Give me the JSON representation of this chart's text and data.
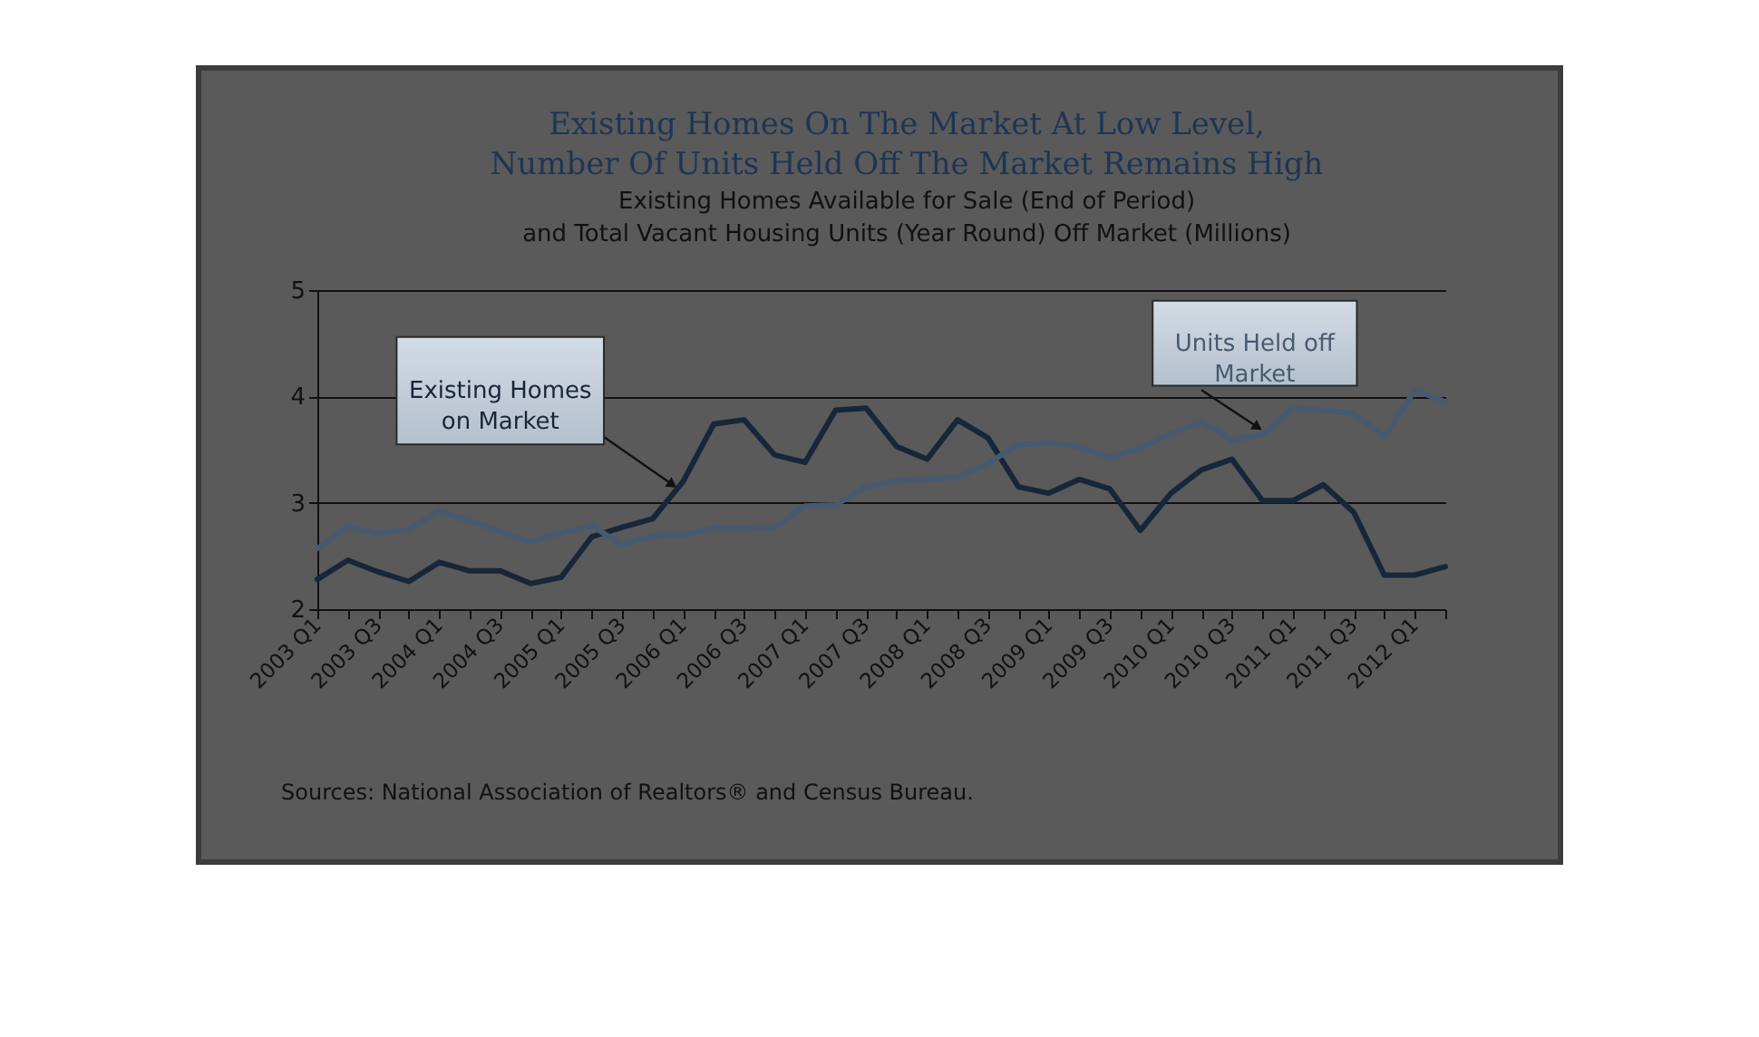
{
  "chart_data": {
    "type": "line",
    "title": "Existing Homes On The Market At Low Level,\nNumber Of Units Held Off The Market Remains High",
    "subtitle": "Existing Homes Available for Sale (End of Period)\nand Total Vacant Housing Units (Year Round) Off Market (Millions)",
    "categories": [
      "2003 Q1",
      null,
      "2003 Q3",
      null,
      "2004 Q1",
      null,
      "2004 Q3",
      null,
      "2005 Q1",
      null,
      "2005 Q3",
      null,
      "2006 Q1",
      null,
      "2006 Q3",
      null,
      "2007 Q1",
      null,
      "2007 Q3",
      null,
      "2008 Q1",
      null,
      "2008 Q3",
      null,
      "2009 Q1",
      null,
      "2009 Q3",
      null,
      "2010 Q1",
      null,
      "2010 Q3",
      null,
      "2011 Q1",
      null,
      "2011 Q3",
      null,
      "2012 Q1",
      null
    ],
    "series": [
      {
        "name": "Existing Homes\non Market",
        "color": "#172638",
        "values": [
          2.28,
          2.46,
          2.35,
          2.26,
          2.44,
          2.36,
          2.36,
          2.24,
          2.3,
          2.68,
          2.77,
          2.85,
          3.2,
          3.74,
          3.78,
          3.45,
          3.38,
          3.87,
          3.89,
          3.53,
          3.41,
          3.78,
          3.61,
          3.15,
          3.09,
          3.22,
          3.13,
          2.74,
          3.09,
          3.31,
          3.41,
          3.02,
          3.02,
          3.17,
          2.91,
          2.32,
          2.32,
          2.4
        ]
      },
      {
        "name": "Units Held off\nMarket",
        "color": "#475a70",
        "values": [
          2.57,
          2.77,
          2.71,
          2.75,
          2.92,
          2.83,
          2.73,
          2.63,
          2.72,
          2.78,
          2.61,
          2.69,
          2.7,
          2.76,
          2.76,
          2.77,
          2.97,
          2.98,
          3.15,
          3.21,
          3.22,
          3.24,
          3.37,
          3.55,
          3.56,
          3.53,
          3.42,
          3.52,
          3.65,
          3.76,
          3.59,
          3.64,
          3.89,
          3.87,
          3.84,
          3.62,
          4.06,
          3.95
        ]
      }
    ],
    "ylim": [
      2,
      5
    ],
    "yticks": [
      2,
      3,
      4,
      5
    ],
    "grid": "y",
    "legend": false,
    "annotations": [
      "Sources: National Association of Realtors® and Census Bureau."
    ]
  }
}
